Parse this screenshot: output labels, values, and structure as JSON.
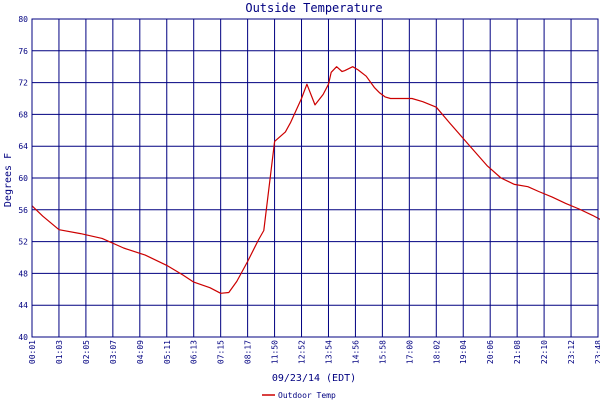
{
  "chart_data": {
    "type": "line",
    "title": "Outside Temperature",
    "xlabel": "09/23/14 (EDT)",
    "ylabel": "Degrees F",
    "ylim": [
      40,
      80
    ],
    "yticks": [
      40,
      44,
      48,
      52,
      56,
      60,
      64,
      68,
      72,
      76,
      80
    ],
    "xlim": [
      "00:01",
      "23:48"
    ],
    "xticks": [
      "00:01",
      "01:03",
      "02:05",
      "03:07",
      "04:09",
      "05:11",
      "06:13",
      "07:15",
      "08:17",
      "11:50",
      "12:52",
      "13:54",
      "14:56",
      "15:58",
      "17:00",
      "18:02",
      "19:04",
      "20:06",
      "21:08",
      "22:10",
      "23:12",
      "23:48"
    ],
    "grid": true,
    "legend_position": "bottom-center",
    "colors": {
      "frame": "#000080",
      "grid": "#000080",
      "line": "#cc0000",
      "text": "#000080"
    },
    "series": [
      {
        "name": "Outdoor Temp",
        "x": [
          0,
          0.4,
          1.0,
          1.8,
          2.6,
          3.4,
          4.2,
          5.0,
          5.6,
          6.0,
          6.6,
          7.0,
          7.3,
          7.6,
          8.0,
          8.4,
          8.6,
          9.0,
          9.4,
          9.6,
          9.8,
          10.0,
          10.2,
          10.5,
          10.8,
          11.0,
          11.1,
          11.3,
          11.5,
          11.6,
          11.9,
          12.1,
          12.4,
          12.7,
          12.9,
          13.1,
          13.3,
          13.5,
          13.8,
          14.1,
          14.5,
          15.0,
          15.5,
          16.2,
          16.9,
          17.4,
          17.9,
          18.4,
          18.8,
          19.3,
          19.8,
          20.3,
          20.8,
          21.3,
          21.8,
          22.3,
          22.8,
          23.3
        ],
        "y": [
          56.5,
          55.2,
          53.5,
          53.0,
          52.4,
          51.2,
          50.3,
          49.0,
          47.8,
          46.9,
          46.2,
          45.5,
          45.6,
          47.0,
          49.5,
          52.2,
          53.4,
          64.6,
          65.8,
          67.0,
          68.5,
          70.0,
          71.8,
          69.2,
          70.5,
          71.8,
          73.3,
          74.0,
          73.4,
          73.5,
          74.0,
          73.6,
          72.8,
          71.4,
          70.7,
          70.2,
          70.0,
          70.0,
          70.0,
          70.0,
          69.6,
          68.9,
          66.9,
          64.2,
          61.5,
          60.0,
          59.2,
          58.9,
          58.3,
          57.6,
          56.8,
          56.1,
          55.3,
          54.4,
          53.8,
          53.6,
          53.3,
          53.0
        ]
      }
    ]
  }
}
